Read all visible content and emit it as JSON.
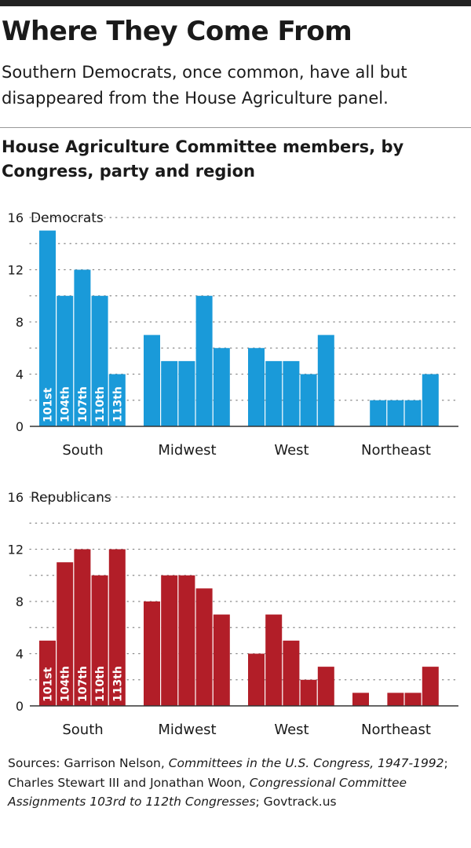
{
  "header": {
    "title": "Where They Come From",
    "subtitle": "Southern Democrats, once common, have all but disappeared from the House Agriculture panel.",
    "chart_title": "House Agriculture Committee members, by Congress, party and region"
  },
  "source": {
    "prefix": "Sources: Garrison Nelson, ",
    "work1": "Committees in the U.S. Congress, 1947-1992",
    "middle": "; Charles Stewart III and Jonathan Woon, ",
    "work2": "Congressional Committee Assignments 103rd to 112th Congresses",
    "suffix": "; Govtrack.us"
  },
  "colors": {
    "democrats": "#1a9ad9",
    "republicans": "#b21e28",
    "grid": "#888888"
  },
  "chart_data": [
    {
      "type": "bar",
      "title": "Democrats",
      "groups": [
        "South",
        "Midwest",
        "West",
        "Northeast"
      ],
      "congresses": [
        "101st",
        "104th",
        "107th",
        "110th",
        "113th"
      ],
      "values": [
        [
          15,
          10,
          12,
          10,
          4
        ],
        [
          7,
          5,
          5,
          10,
          6
        ],
        [
          6,
          5,
          5,
          4,
          7
        ],
        [
          0,
          2,
          2,
          2,
          4
        ]
      ],
      "ylim": [
        0,
        16
      ],
      "yticks": [
        0,
        4,
        8,
        12,
        16
      ],
      "grid": true
    },
    {
      "type": "bar",
      "title": "Republicans",
      "groups": [
        "South",
        "Midwest",
        "West",
        "Northeast"
      ],
      "congresses": [
        "101st",
        "104th",
        "107th",
        "110th",
        "113th"
      ],
      "values": [
        [
          5,
          11,
          12,
          10,
          12
        ],
        [
          8,
          10,
          10,
          9,
          7
        ],
        [
          4,
          7,
          5,
          2,
          3
        ],
        [
          1,
          0,
          1,
          1,
          3
        ]
      ],
      "ylim": [
        0,
        16
      ],
      "yticks": [
        0,
        4,
        8,
        12,
        16
      ],
      "grid": true
    }
  ]
}
